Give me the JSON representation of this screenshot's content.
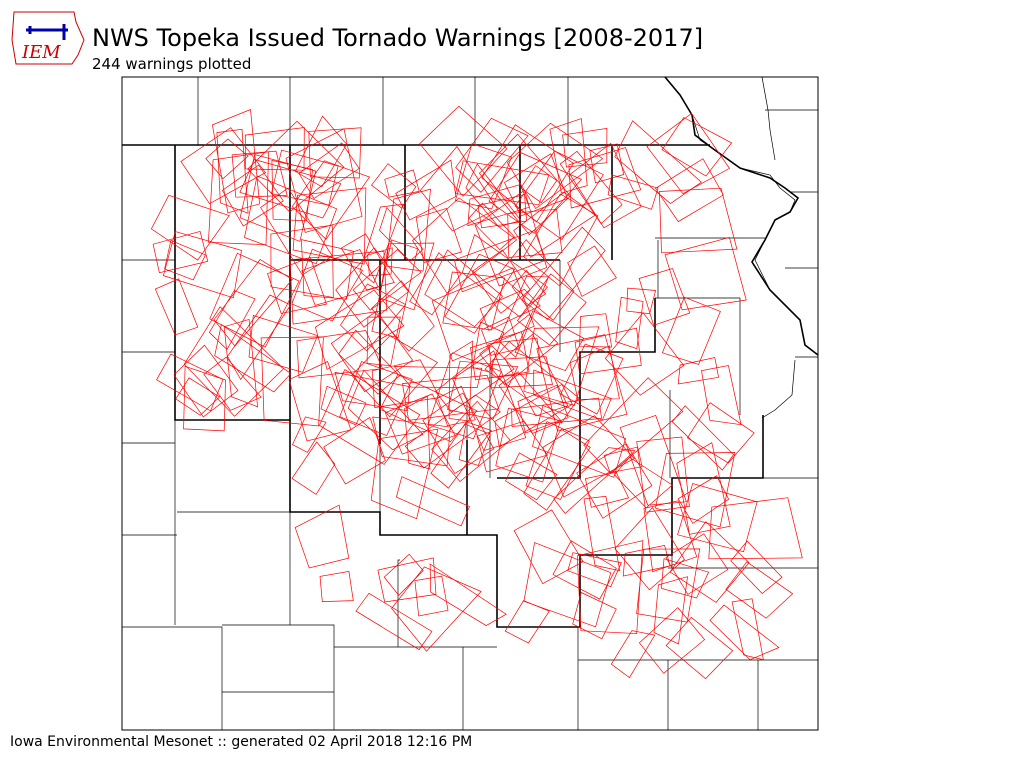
{
  "header": {
    "logo": "IEM",
    "title": "NWS Topeka Issued Tornado Warnings [2008-2017]",
    "subtitle": "244 warnings plotted"
  },
  "footer": "Iowa Environmental Mesonet :: generated 02 April 2018 12:16 PM"
}
